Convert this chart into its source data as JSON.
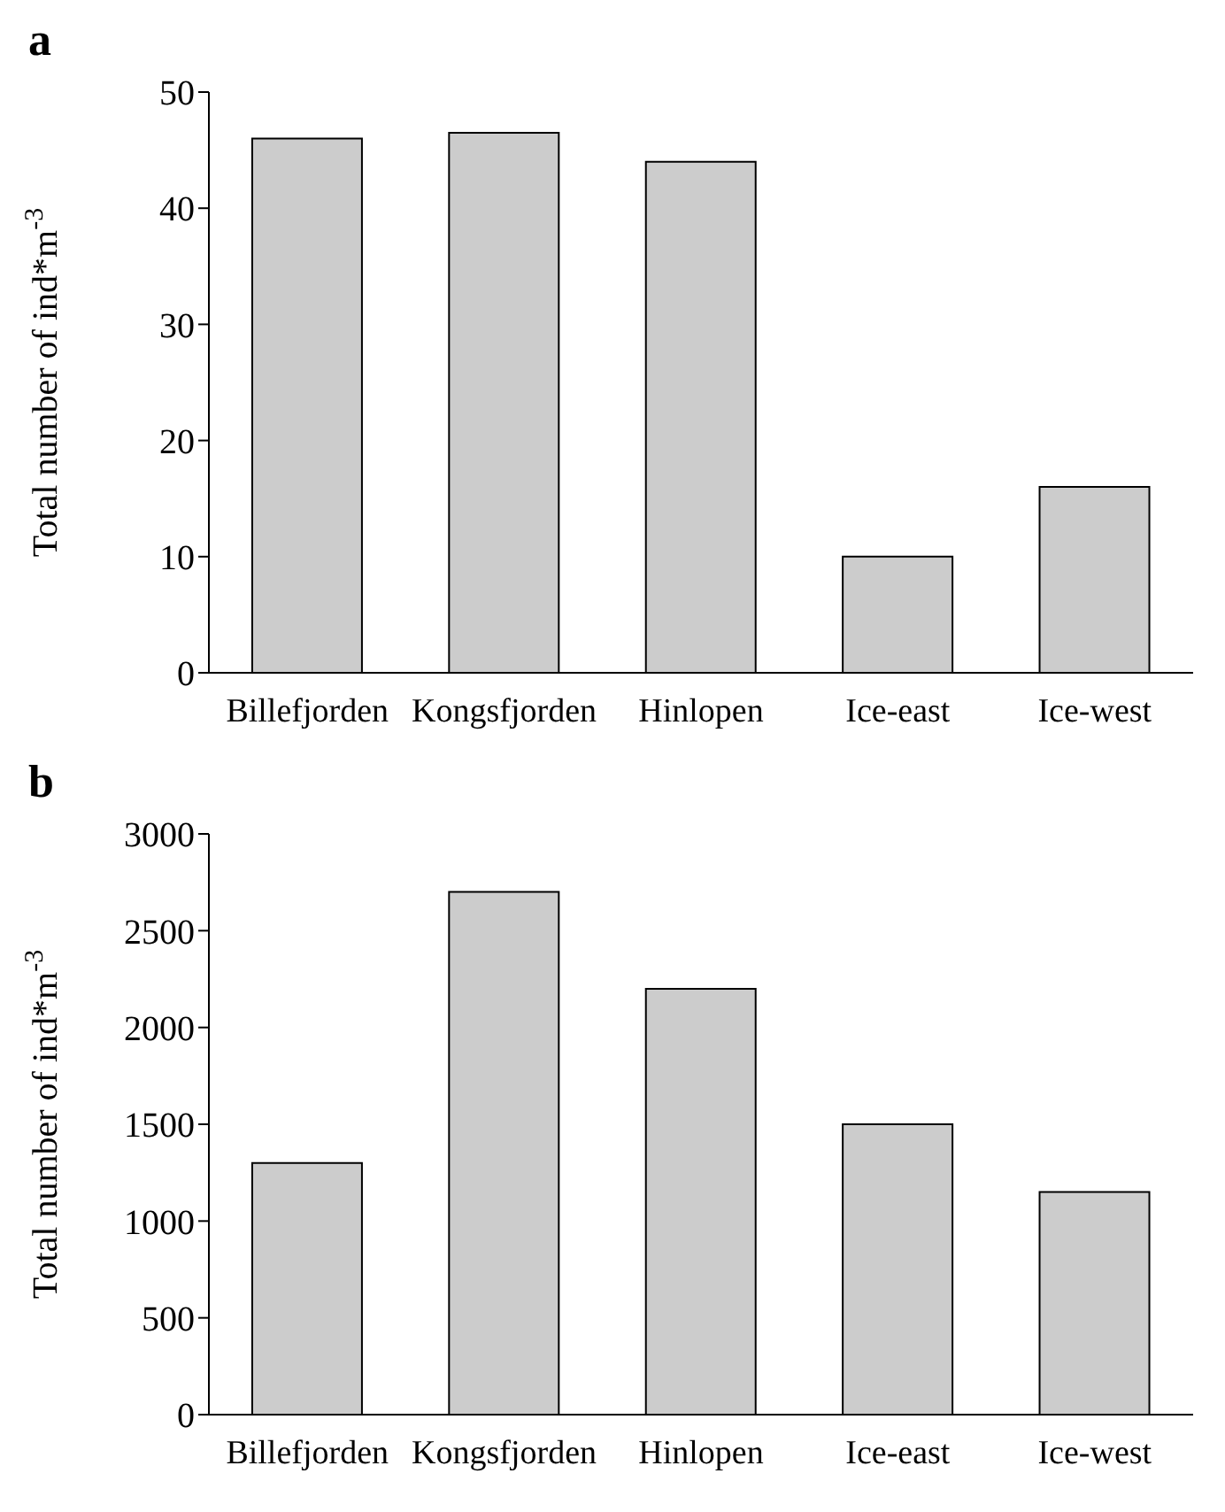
{
  "chart_data": [
    {
      "type": "bar",
      "title": "a",
      "ylabel": "Total number of ind*m$^{-3}$",
      "categories": [
        "Billefjorden",
        "Kongsfjorden",
        "Hinlopen",
        "Ice-east",
        "Ice-west"
      ],
      "values": [
        46,
        46.5,
        44,
        10,
        16
      ],
      "color": "#cccccc",
      "ylim": [
        0,
        50
      ],
      "yticks": [
        0,
        10,
        20,
        30,
        40,
        50
      ],
      "grid": false,
      "legend": false
    },
    {
      "type": "bar",
      "title": "b",
      "ylabel": "Total number of ind*m$^{-3}$",
      "categories": [
        "Billefjorden",
        "Kongsfjorden",
        "Hinlopen",
        "Ice-east",
        "Ice-west"
      ],
      "values": [
        1300,
        2700,
        2200,
        1500,
        1150
      ],
      "color": "#cccccc",
      "ylim": [
        0,
        3000
      ],
      "yticks": [
        0,
        500,
        1000,
        1500,
        2000,
        2500,
        3000
      ],
      "grid": false,
      "legend": false
    }
  ]
}
